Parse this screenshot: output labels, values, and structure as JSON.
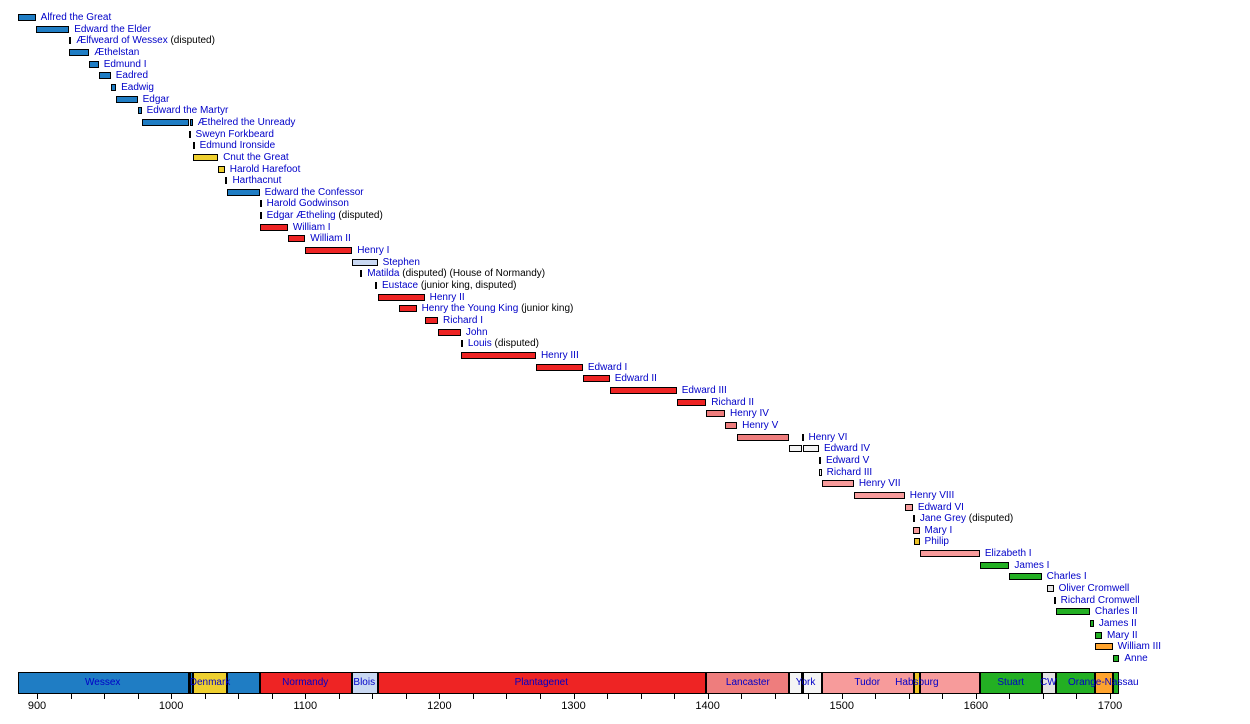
{
  "chart_data": {
    "type": "bar",
    "variant": "gantt-timeline-of-english-monarchs",
    "axis": {
      "start": 886,
      "end": 1707,
      "major_ticks": [
        900,
        1000,
        1100,
        1200,
        1300,
        1400,
        1500,
        1600,
        1700
      ],
      "minor_tick_step": 25
    },
    "colors": {
      "wessex": "#1f7dc4",
      "denmark": "#eecf2f",
      "normandy": "#ee2424",
      "blois": "#c9d8f2",
      "plantagenet": "#ee2424",
      "lancaster": "#ee7d7d",
      "york": "#f4f4f4",
      "tudor": "#f79b9b",
      "habsburg": "#edc327",
      "stuart": "#23af23",
      "commonwealth": "#e4e4e4",
      "orange_nassau": "#ffa42e",
      "interregnum": "#111111",
      "link_text": "#0000c8",
      "note_text": "#000000"
    },
    "monarchs": [
      {
        "name": "Alfred the Great",
        "note": "",
        "house": "wessex",
        "segments": [
          [
            886,
            899
          ]
        ]
      },
      {
        "name": "Edward the Elder",
        "note": "",
        "house": "wessex",
        "segments": [
          [
            899,
            924
          ]
        ]
      },
      {
        "name": "Ælfweard of Wessex",
        "note": "(disputed)",
        "house": "wessex",
        "segments": [
          [
            924,
            924
          ]
        ]
      },
      {
        "name": "Æthelstan",
        "note": "",
        "house": "wessex",
        "segments": [
          [
            924,
            939
          ]
        ]
      },
      {
        "name": "Edmund I",
        "note": "",
        "house": "wessex",
        "segments": [
          [
            939,
            946
          ]
        ]
      },
      {
        "name": "Eadred",
        "note": "",
        "house": "wessex",
        "segments": [
          [
            946,
            955
          ]
        ]
      },
      {
        "name": "Eadwig",
        "note": "",
        "house": "wessex",
        "segments": [
          [
            955,
            959
          ]
        ]
      },
      {
        "name": "Edgar",
        "note": "",
        "house": "wessex",
        "segments": [
          [
            959,
            975
          ]
        ]
      },
      {
        "name": "Edward the Martyr",
        "note": "",
        "house": "wessex",
        "segments": [
          [
            975,
            978
          ]
        ]
      },
      {
        "name": "Æthelred the Unready",
        "note": "",
        "house": "wessex",
        "segments": [
          [
            978,
            1013
          ],
          [
            1014,
            1016
          ]
        ]
      },
      {
        "name": "Sweyn Forkbeard",
        "note": "",
        "house": "denmark",
        "segments": [
          [
            1013,
            1014
          ]
        ]
      },
      {
        "name": "Edmund Ironside",
        "note": "",
        "house": "wessex",
        "segments": [
          [
            1016,
            1016
          ]
        ]
      },
      {
        "name": "Cnut the Great",
        "note": "",
        "house": "denmark",
        "segments": [
          [
            1016,
            1035
          ]
        ]
      },
      {
        "name": "Harold Harefoot",
        "note": "",
        "house": "denmark",
        "segments": [
          [
            1035,
            1040
          ]
        ]
      },
      {
        "name": "Harthacnut",
        "note": "",
        "house": "denmark",
        "segments": [
          [
            1040,
            1042
          ]
        ]
      },
      {
        "name": "Edward the Confessor",
        "note": "",
        "house": "wessex",
        "segments": [
          [
            1042,
            1066
          ]
        ]
      },
      {
        "name": "Harold Godwinson",
        "note": "",
        "house": "wessex",
        "segments": [
          [
            1066,
            1066
          ]
        ]
      },
      {
        "name": "Edgar Ætheling",
        "note": "(disputed)",
        "house": "wessex",
        "segments": [
          [
            1066,
            1066
          ]
        ]
      },
      {
        "name": "William I",
        "note": "",
        "house": "normandy",
        "segments": [
          [
            1066,
            1087
          ]
        ]
      },
      {
        "name": "William II",
        "note": "",
        "house": "normandy",
        "segments": [
          [
            1087,
            1100
          ]
        ]
      },
      {
        "name": "Henry I",
        "note": "",
        "house": "normandy",
        "segments": [
          [
            1100,
            1135
          ]
        ]
      },
      {
        "name": "Stephen",
        "note": "",
        "house": "blois",
        "segments": [
          [
            1135,
            1154
          ]
        ]
      },
      {
        "name": "Matilda",
        "note": "(disputed) (House of Normandy)",
        "house": "normandy",
        "segments": [
          [
            1141,
            1141
          ]
        ]
      },
      {
        "name": "Eustace",
        "note": "(junior king, disputed)",
        "house": "blois",
        "segments": [
          [
            1152,
            1153
          ]
        ]
      },
      {
        "name": "Henry II",
        "note": "",
        "house": "plantagenet",
        "segments": [
          [
            1154,
            1189
          ]
        ]
      },
      {
        "name": "Henry the Young King",
        "note": "(junior king)",
        "house": "plantagenet",
        "segments": [
          [
            1170,
            1183
          ]
        ]
      },
      {
        "name": "Richard I",
        "note": "",
        "house": "plantagenet",
        "segments": [
          [
            1189,
            1199
          ]
        ]
      },
      {
        "name": "John",
        "note": "",
        "house": "plantagenet",
        "segments": [
          [
            1199,
            1216
          ]
        ]
      },
      {
        "name": "Louis",
        "note": "(disputed)",
        "house": "plantagenet",
        "segments": [
          [
            1216,
            1217
          ]
        ]
      },
      {
        "name": "Henry III",
        "note": "",
        "house": "plantagenet",
        "segments": [
          [
            1216,
            1272
          ]
        ]
      },
      {
        "name": "Edward I",
        "note": "",
        "house": "plantagenet",
        "segments": [
          [
            1272,
            1307
          ]
        ]
      },
      {
        "name": "Edward II",
        "note": "",
        "house": "plantagenet",
        "segments": [
          [
            1307,
            1327
          ]
        ]
      },
      {
        "name": "Edward III",
        "note": "",
        "house": "plantagenet",
        "segments": [
          [
            1327,
            1377
          ]
        ]
      },
      {
        "name": "Richard II",
        "note": "",
        "house": "plantagenet",
        "segments": [
          [
            1377,
            1399
          ]
        ]
      },
      {
        "name": "Henry IV",
        "note": "",
        "house": "lancaster",
        "segments": [
          [
            1399,
            1413
          ]
        ]
      },
      {
        "name": "Henry V",
        "note": "",
        "house": "lancaster",
        "segments": [
          [
            1413,
            1422
          ]
        ]
      },
      {
        "name": "Henry VI",
        "note": "",
        "house": "lancaster",
        "segments": [
          [
            1422,
            1461
          ],
          [
            1470,
            1471
          ]
        ]
      },
      {
        "name": "Edward IV",
        "note": "",
        "house": "york",
        "segments": [
          [
            1461,
            1470
          ],
          [
            1471,
            1483
          ]
        ]
      },
      {
        "name": "Edward V",
        "note": "",
        "house": "york",
        "segments": [
          [
            1483,
            1483
          ]
        ]
      },
      {
        "name": "Richard III",
        "note": "",
        "house": "york",
        "segments": [
          [
            1483,
            1485
          ]
        ]
      },
      {
        "name": "Henry VII",
        "note": "",
        "house": "tudor",
        "segments": [
          [
            1485,
            1509
          ]
        ]
      },
      {
        "name": "Henry VIII",
        "note": "",
        "house": "tudor",
        "segments": [
          [
            1509,
            1547
          ]
        ]
      },
      {
        "name": "Edward VI",
        "note": "",
        "house": "tudor",
        "segments": [
          [
            1547,
            1553
          ]
        ]
      },
      {
        "name": "Jane Grey",
        "note": "(disputed)",
        "house": "tudor",
        "segments": [
          [
            1553,
            1553
          ]
        ]
      },
      {
        "name": "Mary I",
        "note": "",
        "house": "tudor",
        "segments": [
          [
            1553,
            1558
          ]
        ]
      },
      {
        "name": "Philip",
        "note": "",
        "house": "habsburg",
        "segments": [
          [
            1554,
            1558
          ]
        ]
      },
      {
        "name": "Elizabeth I",
        "note": "",
        "house": "tudor",
        "segments": [
          [
            1558,
            1603
          ]
        ]
      },
      {
        "name": "James I",
        "note": "",
        "house": "stuart",
        "segments": [
          [
            1603,
            1625
          ]
        ]
      },
      {
        "name": "Charles I",
        "note": "",
        "house": "stuart",
        "segments": [
          [
            1625,
            1649
          ]
        ]
      },
      {
        "name": "Oliver Cromwell",
        "note": "",
        "house": "commonwealth",
        "segments": [
          [
            1653,
            1658
          ]
        ]
      },
      {
        "name": "Richard Cromwell",
        "note": "",
        "house": "commonwealth",
        "segments": [
          [
            1658,
            1659
          ]
        ]
      },
      {
        "name": "Charles II",
        "note": "",
        "house": "stuart",
        "segments": [
          [
            1660,
            1685
          ]
        ]
      },
      {
        "name": "James II",
        "note": "",
        "house": "stuart",
        "segments": [
          [
            1685,
            1688
          ]
        ]
      },
      {
        "name": "Mary II",
        "note": "",
        "house": "stuart",
        "segments": [
          [
            1689,
            1694
          ]
        ]
      },
      {
        "name": "William III",
        "note": "",
        "house": "orange_nassau",
        "segments": [
          [
            1689,
            1702
          ]
        ]
      },
      {
        "name": "Anne",
        "note": "",
        "house": "stuart",
        "segments": [
          [
            1702,
            1707
          ]
        ]
      }
    ],
    "house_band": {
      "segments": [
        {
          "house": "wessex",
          "start": 886,
          "end": 1013
        },
        {
          "house": "interregnum",
          "start": 1013,
          "end": 1014
        },
        {
          "house": "wessex",
          "start": 1014,
          "end": 1016
        },
        {
          "house": "denmark",
          "start": 1016,
          "end": 1042
        },
        {
          "house": "wessex",
          "start": 1042,
          "end": 1066
        },
        {
          "house": "normandy",
          "start": 1066,
          "end": 1135
        },
        {
          "house": "blois",
          "start": 1135,
          "end": 1154
        },
        {
          "house": "plantagenet",
          "start": 1154,
          "end": 1399
        },
        {
          "house": "lancaster",
          "start": 1399,
          "end": 1461
        },
        {
          "house": "york",
          "start": 1461,
          "end": 1470
        },
        {
          "house": "interregnum",
          "start": 1470,
          "end": 1471
        },
        {
          "house": "york",
          "start": 1471,
          "end": 1485
        },
        {
          "house": "tudor",
          "start": 1485,
          "end": 1554
        },
        {
          "house": "habsburg",
          "start": 1554,
          "end": 1558
        },
        {
          "house": "tudor",
          "start": 1558,
          "end": 1603
        },
        {
          "house": "stuart",
          "start": 1603,
          "end": 1649
        },
        {
          "house": "commonwealth",
          "start": 1649,
          "end": 1660
        },
        {
          "house": "stuart",
          "start": 1660,
          "end": 1689
        },
        {
          "house": "orange_nassau",
          "start": 1689,
          "end": 1702
        },
        {
          "house": "stuart",
          "start": 1702,
          "end": 1707
        }
      ],
      "labels": [
        {
          "text": "Wessex",
          "center_year": 949
        },
        {
          "text": "Denmark",
          "center_year": 1029
        },
        {
          "text": "Normandy",
          "center_year": 1100
        },
        {
          "text": "Blois",
          "center_year": 1144
        },
        {
          "text": "Plantagenet",
          "center_year": 1276
        },
        {
          "text": "Lancaster",
          "center_year": 1430
        },
        {
          "text": "York",
          "center_year": 1473
        },
        {
          "text": "Tudor",
          "center_year": 1519
        },
        {
          "text": "Habsburg",
          "center_year": 1556
        },
        {
          "text": "Stuart",
          "center_year": 1626
        },
        {
          "text": "CW",
          "center_year": 1654
        },
        {
          "text": "Orange-Nassau",
          "center_year": 1695
        }
      ]
    }
  }
}
